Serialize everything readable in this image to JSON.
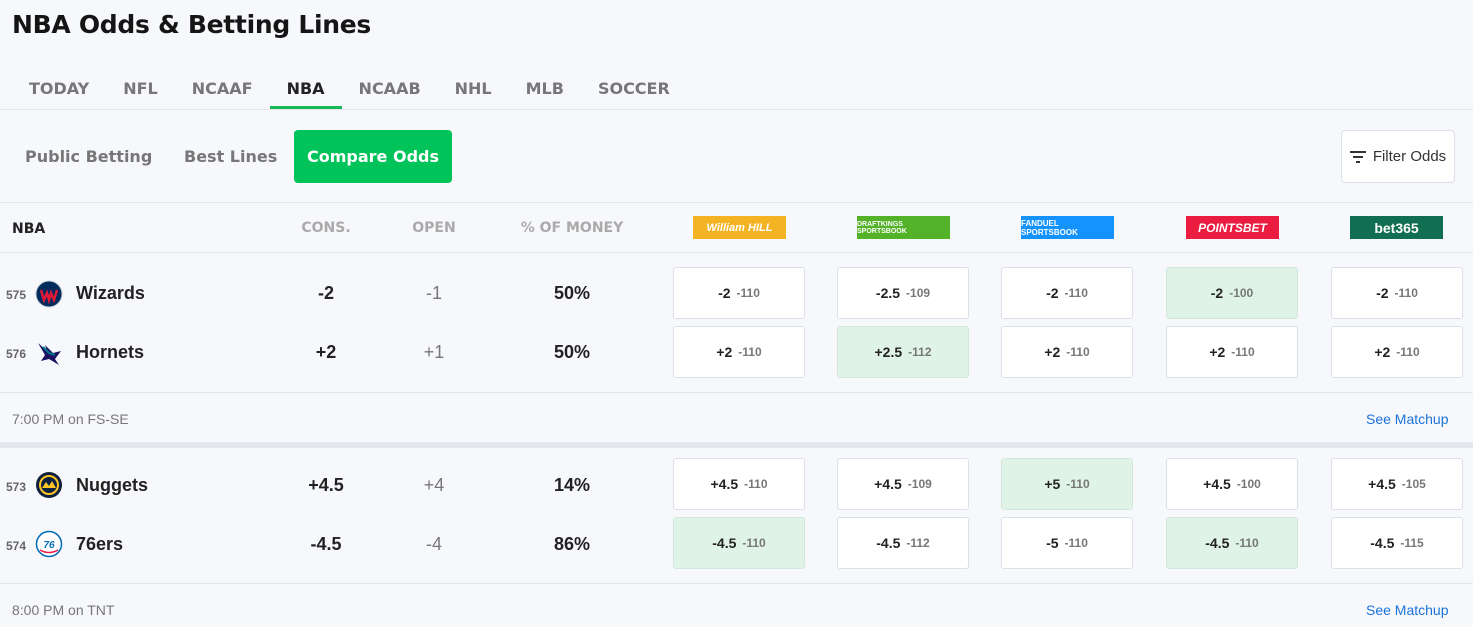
{
  "page_title": "NBA Odds & Betting Lines",
  "sport_tabs": [
    {
      "label": "TODAY",
      "active": false
    },
    {
      "label": "NFL",
      "active": false
    },
    {
      "label": "NCAAF",
      "active": false
    },
    {
      "label": "NBA",
      "active": true
    },
    {
      "label": "NCAAB",
      "active": false
    },
    {
      "label": "NHL",
      "active": false
    },
    {
      "label": "MLB",
      "active": false
    },
    {
      "label": "SOCCER",
      "active": false
    }
  ],
  "sub_tabs": [
    {
      "label": "Public Betting",
      "active": false
    },
    {
      "label": "Best Lines",
      "active": false
    },
    {
      "label": "Compare Odds",
      "active": true
    }
  ],
  "filter_label": "Filter Odds",
  "columns": {
    "league": "NBA",
    "cons": "CONS.",
    "open": "OPEN",
    "money": "% OF MONEY"
  },
  "books": [
    {
      "name": "William Hill",
      "display": "William HILL",
      "color": "#f4b323"
    },
    {
      "name": "DraftKings Sportsbook",
      "display": "DRAFTKINGS SPORTSBOOK",
      "color": "#53b227"
    },
    {
      "name": "FanDuel Sportsbook",
      "display": "FANDUEL SPORTSBOOK",
      "color": "#1493ff"
    },
    {
      "name": "PointsBet",
      "display": "POINTSBET",
      "color": "#ea1c40"
    },
    {
      "name": "bet365",
      "display": "bet365",
      "color": "#126e51"
    }
  ],
  "games": [
    {
      "time": "7:00 PM on FS-SE",
      "matchup_label": "See Matchup",
      "teams": [
        {
          "rot": "575",
          "name": "Wizards",
          "logo": "wizards-logo",
          "cons": "-2",
          "open": "-1",
          "money": "50%",
          "odds": [
            {
              "line": "-2",
              "price": "-110",
              "best": false
            },
            {
              "line": "-2.5",
              "price": "-109",
              "best": false
            },
            {
              "line": "-2",
              "price": "-110",
              "best": false
            },
            {
              "line": "-2",
              "price": "-100",
              "best": true
            },
            {
              "line": "-2",
              "price": "-110",
              "best": false
            }
          ]
        },
        {
          "rot": "576",
          "name": "Hornets",
          "logo": "hornets-logo",
          "cons": "+2",
          "open": "+1",
          "money": "50%",
          "odds": [
            {
              "line": "+2",
              "price": "-110",
              "best": false
            },
            {
              "line": "+2.5",
              "price": "-112",
              "best": true
            },
            {
              "line": "+2",
              "price": "-110",
              "best": false
            },
            {
              "line": "+2",
              "price": "-110",
              "best": false
            },
            {
              "line": "+2",
              "price": "-110",
              "best": false
            }
          ]
        }
      ]
    },
    {
      "time": "8:00 PM on TNT",
      "matchup_label": "See Matchup",
      "teams": [
        {
          "rot": "573",
          "name": "Nuggets",
          "logo": "nuggets-logo",
          "cons": "+4.5",
          "open": "+4",
          "money": "14%",
          "odds": [
            {
              "line": "+4.5",
              "price": "-110",
              "best": false
            },
            {
              "line": "+4.5",
              "price": "-109",
              "best": false
            },
            {
              "line": "+5",
              "price": "-110",
              "best": true
            },
            {
              "line": "+4.5",
              "price": "-100",
              "best": false
            },
            {
              "line": "+4.5",
              "price": "-105",
              "best": false
            }
          ]
        },
        {
          "rot": "574",
          "name": "76ers",
          "logo": "76ers-logo",
          "cons": "-4.5",
          "open": "-4",
          "money": "86%",
          "odds": [
            {
              "line": "-4.5",
              "price": "-110",
              "best": true
            },
            {
              "line": "-4.5",
              "price": "-112",
              "best": false
            },
            {
              "line": "-5",
              "price": "-110",
              "best": false
            },
            {
              "line": "-4.5",
              "price": "-110",
              "best": true
            },
            {
              "line": "-4.5",
              "price": "-115",
              "best": false
            }
          ]
        }
      ]
    }
  ],
  "colors": {
    "accent": "#00c35a",
    "best_cell": "#dff3e6",
    "link": "#1a73d9"
  }
}
